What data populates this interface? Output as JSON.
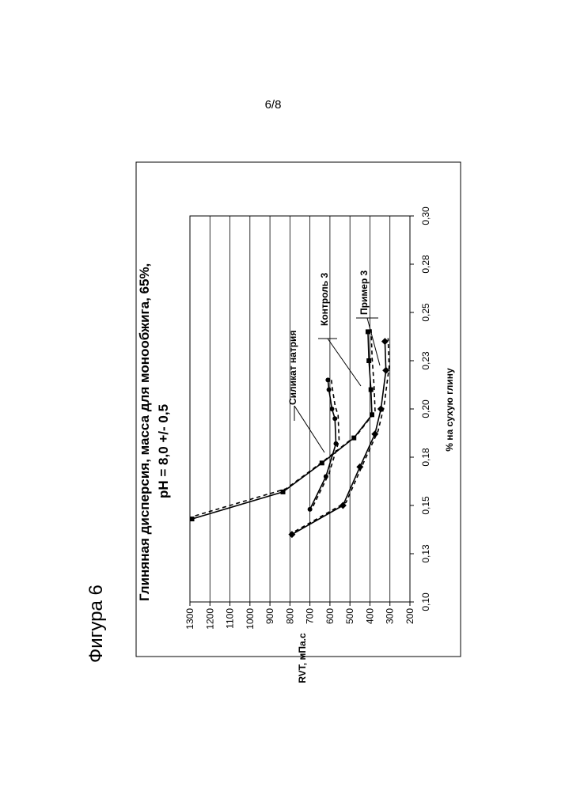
{
  "page_number": "6/8",
  "figure_label": "Фигура 6",
  "chart_data": {
    "type": "line",
    "title_line1": "Глиняная дисперсия, масса для монообжига, 65%,",
    "title_line2": "pH = 8,0 +/- 0,5",
    "xlabel": "% на сухую глину",
    "ylabel": "RVT, мПа.с",
    "xlim": [
      0.1,
      0.3
    ],
    "ylim": [
      200,
      1300
    ],
    "x_ticks": [
      "0,10",
      "0,13",
      "0,15",
      "0,18",
      "0,20",
      "0,23",
      "0,25",
      "0,28",
      "0,30"
    ],
    "x_tick_values": [
      0.1,
      0.125,
      0.15,
      0.175,
      0.2,
      0.225,
      0.25,
      0.275,
      0.3
    ],
    "y_ticks": [
      "1300",
      "1200",
      "1100",
      "1000",
      "900",
      "800",
      "700",
      "600",
      "500",
      "400",
      "300",
      "200"
    ],
    "y_tick_values": [
      1300,
      1200,
      1100,
      1000,
      900,
      800,
      700,
      600,
      500,
      400,
      300,
      200
    ],
    "grid": "y-major",
    "rotated": "chart printed rotated 90° counter-clockwise on the page",
    "series": [
      {
        "name": "Силикат натрия",
        "marker": "circle",
        "x": [
          0.148,
          0.165,
          0.182,
          0.195,
          0.2,
          0.21,
          0.215
        ],
        "y": [
          700,
          620,
          570,
          575,
          590,
          605,
          610
        ]
      },
      {
        "name": "Контроль 3",
        "marker": "square",
        "x": [
          0.143,
          0.157,
          0.172,
          0.185,
          0.197,
          0.21,
          0.225,
          0.24
        ],
        "y": [
          1290,
          835,
          640,
          480,
          390,
          395,
          405,
          410
        ]
      },
      {
        "name": "Пример 3",
        "marker": "diamond",
        "x": [
          0.135,
          0.15,
          0.17,
          0.187,
          0.2,
          0.22,
          0.235
        ],
        "y": [
          790,
          535,
          450,
          375,
          345,
          320,
          325
        ]
      }
    ],
    "annotations": [
      "Силикат натрия",
      "Контроль 3",
      "Пример 3"
    ],
    "colors": {
      "line": "#000000",
      "grid": "#000000",
      "background": "#ffffff"
    }
  }
}
